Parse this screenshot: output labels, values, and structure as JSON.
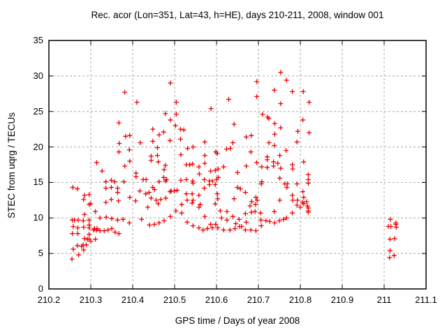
{
  "chart_data": {
    "type": "scatter",
    "title": "Rec. acor (Lon=351, Lat=43, h=HE), days 210-211, 2008, window 001",
    "xlabel": "GPS time / Days of year 2008",
    "ylabel": "STEC from uqrg / TECUs",
    "xlim": [
      210.2,
      211.1
    ],
    "ylim": [
      0,
      35
    ],
    "xticks": [
      210.2,
      210.3,
      210.4,
      210.5,
      210.6,
      210.7,
      210.8,
      210.9,
      211,
      211.1
    ],
    "xtick_labels": [
      "210.2",
      "210.3",
      "210.4",
      "210.5",
      "210.6",
      "210.7",
      "210.8",
      "210.9",
      "211",
      "211.1"
    ],
    "yticks": [
      0,
      5,
      10,
      15,
      20,
      25,
      30,
      35
    ],
    "ytick_labels": [
      "0",
      "5",
      "10",
      "15",
      "20",
      "25",
      "30",
      "35"
    ],
    "grid": "dashed-major-both-axes",
    "legend": "none",
    "marker": "plus",
    "colors": {
      "marker": "#ee0000",
      "grid": "#a8a8a8",
      "axis": "#000000",
      "background": "#ffffff"
    },
    "points": [
      [
        210.255,
        4.2
      ],
      [
        210.271,
        4.8
      ],
      [
        210.258,
        5.6
      ],
      [
        210.283,
        5.5
      ],
      [
        210.268,
        6.1
      ],
      [
        210.278,
        6.0
      ],
      [
        210.282,
        6.2
      ],
      [
        210.289,
        6.2
      ],
      [
        210.285,
        7.1
      ],
      [
        210.292,
        7.0
      ],
      [
        210.296,
        7.0
      ],
      [
        210.3,
        6.7
      ],
      [
        210.311,
        7.0
      ],
      [
        210.256,
        7.8
      ],
      [
        210.269,
        7.8
      ],
      [
        210.296,
        7.7
      ],
      [
        210.258,
        8.8
      ],
      [
        210.269,
        8.6
      ],
      [
        210.283,
        8.7
      ],
      [
        210.296,
        9.0
      ],
      [
        210.296,
        8.6
      ],
      [
        210.309,
        8.5
      ],
      [
        210.315,
        8.5
      ],
      [
        210.256,
        9.7
      ],
      [
        210.261,
        9.7
      ],
      [
        210.27,
        9.7
      ],
      [
        210.282,
        9.6
      ],
      [
        210.296,
        9.7
      ],
      [
        210.285,
        10.5
      ],
      [
        210.311,
        10.9
      ],
      [
        210.322,
        10.0
      ],
      [
        210.257,
        14.3
      ],
      [
        210.268,
        14.1
      ],
      [
        210.285,
        13.2
      ],
      [
        210.296,
        13.3
      ],
      [
        210.283,
        12.6
      ],
      [
        210.296,
        11.9
      ],
      [
        210.3,
        12.0
      ],
      [
        210.337,
        10.1
      ],
      [
        210.35,
        9.9
      ],
      [
        210.364,
        9.7
      ],
      [
        210.377,
        9.8
      ],
      [
        210.392,
        9.3
      ],
      [
        210.421,
        9.8
      ],
      [
        210.307,
        8.3
      ],
      [
        210.314,
        8.3
      ],
      [
        210.322,
        8.2
      ],
      [
        210.332,
        8.2
      ],
      [
        210.341,
        8.3
      ],
      [
        210.35,
        8.5
      ],
      [
        210.358,
        8.0
      ],
      [
        210.367,
        7.8
      ],
      [
        210.336,
        12.2
      ],
      [
        210.349,
        12.6
      ],
      [
        210.366,
        12.4
      ],
      [
        210.393,
        12.9
      ],
      [
        210.407,
        12.4
      ],
      [
        210.367,
        23.4
      ],
      [
        210.383,
        21.5
      ],
      [
        210.393,
        21.6
      ],
      [
        210.368,
        20.5
      ],
      [
        210.367,
        19.3
      ],
      [
        210.392,
        19.6
      ],
      [
        210.418,
        20.6
      ],
      [
        210.393,
        18.0
      ],
      [
        210.381,
        17.3
      ],
      [
        210.314,
        17.8
      ],
      [
        210.327,
        16.6
      ],
      [
        210.408,
        16.3
      ],
      [
        210.408,
        15.8
      ],
      [
        210.417,
        13.8
      ],
      [
        210.349,
        15.3
      ],
      [
        210.336,
        15.1
      ],
      [
        210.357,
        15.1
      ],
      [
        210.379,
        15.1
      ],
      [
        210.336,
        14.2
      ],
      [
        210.349,
        14.3
      ],
      [
        210.364,
        14.2
      ],
      [
        210.364,
        13.6
      ],
      [
        210.381,
        27.7
      ],
      [
        210.41,
        26.3
      ],
      [
        210.49,
        29.0
      ],
      [
        210.504,
        26.3
      ],
      [
        210.478,
        24.7
      ],
      [
        210.504,
        24.6
      ],
      [
        210.49,
        23.8
      ],
      [
        210.587,
        25.4
      ],
      [
        210.629,
        26.7
      ],
      [
        210.502,
        23.0
      ],
      [
        210.514,
        22.5
      ],
      [
        210.448,
        22.5
      ],
      [
        210.463,
        21.7
      ],
      [
        210.474,
        22.1
      ],
      [
        210.522,
        22.4
      ],
      [
        210.448,
        20.8
      ],
      [
        210.489,
        20.9
      ],
      [
        210.514,
        21.1
      ],
      [
        210.572,
        20.7
      ],
      [
        210.642,
        23.2
      ],
      [
        210.639,
        20.6
      ],
      [
        210.459,
        19.9
      ],
      [
        210.531,
        19.8
      ],
      [
        210.544,
        20.0
      ],
      [
        210.598,
        19.3
      ],
      [
        210.624,
        19.7
      ],
      [
        210.633,
        19.8
      ],
      [
        210.444,
        18.7
      ],
      [
        210.444,
        18.1
      ],
      [
        210.459,
        18.8
      ],
      [
        210.461,
        17.9
      ],
      [
        210.515,
        18.9
      ],
      [
        210.572,
        18.8
      ],
      [
        210.602,
        19.1
      ],
      [
        210.478,
        17.4
      ],
      [
        210.475,
        16.8
      ],
      [
        210.528,
        17.5
      ],
      [
        210.536,
        17.5
      ],
      [
        210.543,
        17.6
      ],
      [
        210.558,
        17.2
      ],
      [
        210.572,
        17.7
      ],
      [
        210.559,
        16.2
      ],
      [
        210.586,
        16.6
      ],
      [
        210.597,
        16.7
      ],
      [
        210.604,
        16.9
      ],
      [
        210.617,
        17.2
      ],
      [
        210.425,
        15.4
      ],
      [
        210.432,
        15.4
      ],
      [
        210.463,
        15.1
      ],
      [
        210.474,
        15.7
      ],
      [
        210.478,
        15.2
      ],
      [
        210.481,
        15.4
      ],
      [
        210.515,
        15.3
      ],
      [
        210.528,
        15.4
      ],
      [
        210.543,
        15.2
      ],
      [
        210.544,
        14.9
      ],
      [
        210.571,
        15.4
      ],
      [
        210.583,
        15.2
      ],
      [
        210.59,
        15.2
      ],
      [
        210.6,
        15.4
      ],
      [
        210.604,
        15.7
      ],
      [
        210.448,
        14.3
      ],
      [
        210.452,
        14.0
      ],
      [
        210.439,
        13.6
      ],
      [
        210.431,
        13.4
      ],
      [
        210.444,
        12.8
      ],
      [
        210.456,
        12.5
      ],
      [
        210.467,
        12.6
      ],
      [
        210.479,
        12.8
      ],
      [
        210.489,
        13.7
      ],
      [
        210.492,
        13.8
      ],
      [
        210.499,
        13.8
      ],
      [
        210.506,
        13.9
      ],
      [
        210.528,
        13.4
      ],
      [
        210.542,
        13.4
      ],
      [
        210.53,
        12.5
      ],
      [
        210.544,
        12.5
      ],
      [
        210.558,
        13.2
      ],
      [
        210.571,
        14.2
      ],
      [
        210.583,
        14.7
      ],
      [
        210.597,
        14.7
      ],
      [
        210.602,
        13.4
      ],
      [
        210.603,
        12.7
      ],
      [
        210.642,
        12.7
      ],
      [
        210.561,
        11.9
      ],
      [
        210.436,
        11.5
      ],
      [
        210.503,
        11.0
      ],
      [
        210.517,
        10.7
      ],
      [
        210.558,
        11.5
      ],
      [
        210.572,
        10.2
      ],
      [
        210.609,
        11.0
      ],
      [
        210.625,
        10.9
      ],
      [
        210.612,
        10.0
      ],
      [
        210.625,
        9.7
      ],
      [
        210.639,
        10.2
      ],
      [
        210.646,
        9.2
      ],
      [
        210.44,
        9.0
      ],
      [
        210.452,
        9.1
      ],
      [
        210.463,
        9.3
      ],
      [
        210.475,
        9.6
      ],
      [
        210.49,
        10.2
      ],
      [
        210.53,
        9.4
      ],
      [
        210.544,
        8.9
      ],
      [
        210.558,
        8.6
      ],
      [
        210.568,
        8.3
      ],
      [
        210.578,
        8.5
      ],
      [
        210.586,
        9.1
      ],
      [
        210.59,
        8.6
      ],
      [
        210.598,
        9.1
      ],
      [
        210.603,
        8.6
      ],
      [
        210.617,
        8.3
      ],
      [
        210.632,
        8.3
      ],
      [
        210.644,
        8.5
      ],
      [
        210.461,
        12.0
      ],
      [
        210.517,
        11.9
      ],
      [
        210.542,
        12.1
      ],
      [
        210.597,
        12.0
      ],
      [
        210.654,
        9.8
      ],
      [
        210.655,
        8.8
      ],
      [
        210.66,
        8.8
      ],
      [
        210.669,
        10.6
      ],
      [
        210.671,
        9.4
      ],
      [
        210.669,
        8.3
      ],
      [
        210.68,
        11.7
      ],
      [
        210.683,
        10.8
      ],
      [
        210.682,
        8.3
      ],
      [
        210.692,
        10.9
      ],
      [
        210.693,
        11.9
      ],
      [
        210.694,
        8.2
      ],
      [
        210.705,
        10.7
      ],
      [
        210.706,
        9.7
      ],
      [
        210.707,
        8.9
      ],
      [
        210.718,
        9.6
      ],
      [
        210.727,
        9.5
      ],
      [
        210.738,
        10.9
      ],
      [
        210.739,
        9.3
      ],
      [
        210.75,
        9.6
      ],
      [
        210.76,
        9.8
      ],
      [
        210.767,
        10.0
      ],
      [
        210.781,
        10.7
      ],
      [
        210.792,
        11.8
      ],
      [
        210.8,
        11.5
      ],
      [
        210.808,
        12.0
      ],
      [
        210.817,
        11.7
      ],
      [
        210.819,
        10.8
      ],
      [
        210.819,
        11.4
      ],
      [
        210.819,
        11.0
      ],
      [
        210.739,
        23.3
      ],
      [
        210.753,
        22.7
      ],
      [
        210.739,
        21.8
      ],
      [
        210.806,
        23.8
      ],
      [
        210.794,
        22.2
      ],
      [
        210.821,
        22.0
      ],
      [
        210.671,
        21.4
      ],
      [
        210.683,
        21.6
      ],
      [
        210.725,
        20.6
      ],
      [
        210.738,
        20.2
      ],
      [
        210.792,
        20.7
      ],
      [
        210.682,
        19.3
      ],
      [
        210.766,
        19.5
      ],
      [
        210.751,
        18.8
      ],
      [
        210.721,
        18.6
      ],
      [
        210.721,
        18.2
      ],
      [
        210.736,
        17.9
      ],
      [
        210.746,
        17.7
      ],
      [
        210.696,
        17.8
      ],
      [
        210.708,
        17.2
      ],
      [
        210.721,
        17.1
      ],
      [
        210.736,
        17.3
      ],
      [
        210.753,
        17.0
      ],
      [
        210.671,
        17.3
      ],
      [
        210.65,
        16.4
      ],
      [
        210.781,
        17.5
      ],
      [
        210.782,
        16.9
      ],
      [
        210.808,
        17.9
      ],
      [
        210.751,
        15.6
      ],
      [
        210.708,
        15.1
      ],
      [
        210.707,
        14.8
      ],
      [
        210.763,
        14.8
      ],
      [
        210.769,
        14.8
      ],
      [
        210.768,
        14.3
      ],
      [
        210.792,
        14.8
      ],
      [
        210.819,
        16.1
      ],
      [
        210.819,
        15.4
      ],
      [
        210.819,
        14.9
      ],
      [
        210.65,
        14.3
      ],
      [
        210.657,
        14.1
      ],
      [
        210.669,
        13.6
      ],
      [
        210.694,
        12.9
      ],
      [
        210.697,
        12.5
      ],
      [
        210.684,
        12.3
      ],
      [
        210.751,
        12.5
      ],
      [
        210.781,
        13.2
      ],
      [
        210.782,
        12.5
      ],
      [
        210.793,
        12.5
      ],
      [
        210.806,
        13.7
      ],
      [
        210.808,
        12.9
      ],
      [
        210.815,
        12.3
      ],
      [
        210.805,
        12.2
      ],
      [
        210.725,
        24.0
      ],
      [
        210.753,
        30.5
      ],
      [
        210.767,
        29.4
      ],
      [
        210.696,
        29.2
      ],
      [
        210.738,
        28.0
      ],
      [
        210.696,
        27.1
      ],
      [
        210.781,
        27.8
      ],
      [
        210.807,
        27.8
      ],
      [
        210.753,
        26.1
      ],
      [
        210.821,
        26.3
      ],
      [
        210.71,
        24.6
      ],
      [
        210.722,
        24.2
      ],
      [
        211.015,
        9.8
      ],
      [
        211.01,
        8.8
      ],
      [
        211.016,
        8.8
      ],
      [
        211.028,
        9.3
      ],
      [
        211.028,
        9.1
      ],
      [
        211.029,
        8.7
      ],
      [
        211.014,
        7.0
      ],
      [
        211.025,
        7.1
      ],
      [
        211.014,
        5.4
      ],
      [
        211.024,
        4.7
      ],
      [
        211.013,
        4.4
      ]
    ]
  }
}
